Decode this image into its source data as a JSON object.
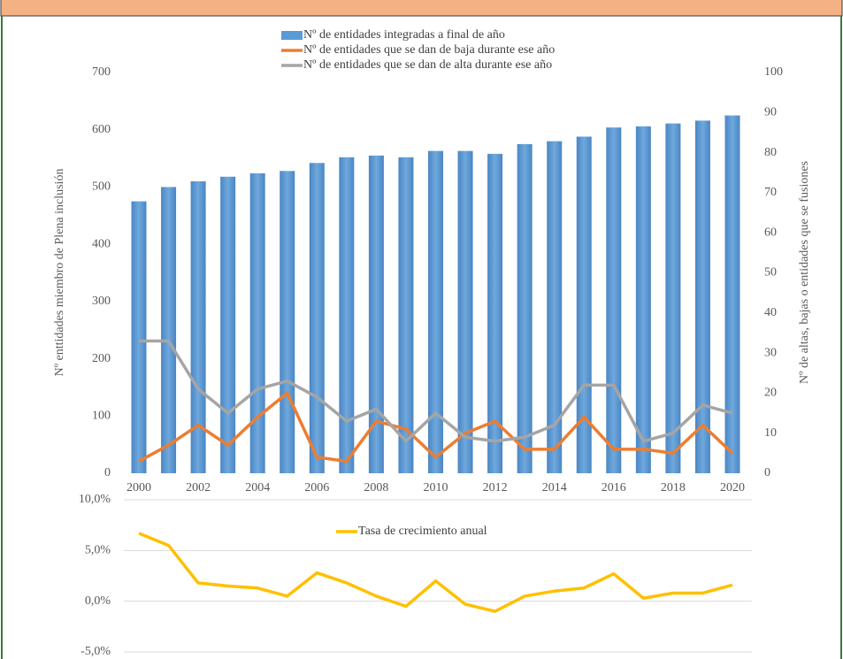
{
  "chart_data": [
    {
      "type": "bar",
      "categories": [
        "2000",
        null,
        "2002",
        null,
        "2004",
        null,
        "2006",
        null,
        "2008",
        null,
        "2010",
        null,
        "2012",
        null,
        "2014",
        null,
        "2016",
        null,
        "2018",
        null,
        "2020"
      ],
      "y_label": "Nº enttidades miembro de Plena inclusión",
      "y2_label": "Nº de altas, bajas o entidades que se fusiones",
      "ylim": [
        0,
        700
      ],
      "yticks": [
        0,
        100,
        200,
        300,
        400,
        500,
        600,
        700
      ],
      "y2lim": [
        0,
        100
      ],
      "y2ticks": [
        0,
        10,
        20,
        30,
        40,
        50,
        60,
        70,
        80,
        90,
        100
      ],
      "series": [
        {
          "name": "Nº de entidades integradas a final de año",
          "type": "bar",
          "color": "#5b9bd5",
          "values": [
            475,
            500,
            510,
            518,
            524,
            528,
            542,
            552,
            555,
            552,
            563,
            563,
            558,
            575,
            580,
            588,
            604,
            606,
            611,
            616,
            625
          ]
        },
        {
          "name": "Nº de entidades que se dan de baja durante ese año",
          "type": "line",
          "axis": "y2",
          "color": "#ed7d31",
          "values": [
            3,
            7,
            12,
            7,
            14,
            20,
            4,
            3,
            13,
            11,
            4,
            10,
            13,
            6,
            6,
            14,
            6,
            6,
            5,
            12,
            5
          ]
        },
        {
          "name": "Nº de entidades que se dan de alta durante ese año",
          "type": "line",
          "axis": "y2",
          "color": "#a5a5a5",
          "values": [
            33,
            33,
            21,
            15,
            21,
            23,
            19,
            13,
            16,
            8,
            15,
            9,
            8,
            9,
            12,
            22,
            22,
            8,
            10,
            17,
            15
          ]
        }
      ]
    },
    {
      "type": "line",
      "ylim": [
        -5,
        10
      ],
      "yticks": [
        {
          "value": -5,
          "label": "-5,0%"
        },
        {
          "value": 0,
          "label": "0,0%"
        },
        {
          "value": 5,
          "label": "5,0%"
        },
        {
          "value": 10,
          "label": "10,0%"
        }
      ],
      "grid": true,
      "series": [
        {
          "name": "Tasa de crecimiento anual",
          "color": "#ffc000",
          "values": [
            6.7,
            5.5,
            1.8,
            1.5,
            1.3,
            0.5,
            2.8,
            1.8,
            0.5,
            -0.5,
            2.0,
            -0.3,
            -1.0,
            0.5,
            1.0,
            1.3,
            2.7,
            0.3,
            0.8,
            0.8,
            1.6
          ]
        }
      ]
    }
  ]
}
